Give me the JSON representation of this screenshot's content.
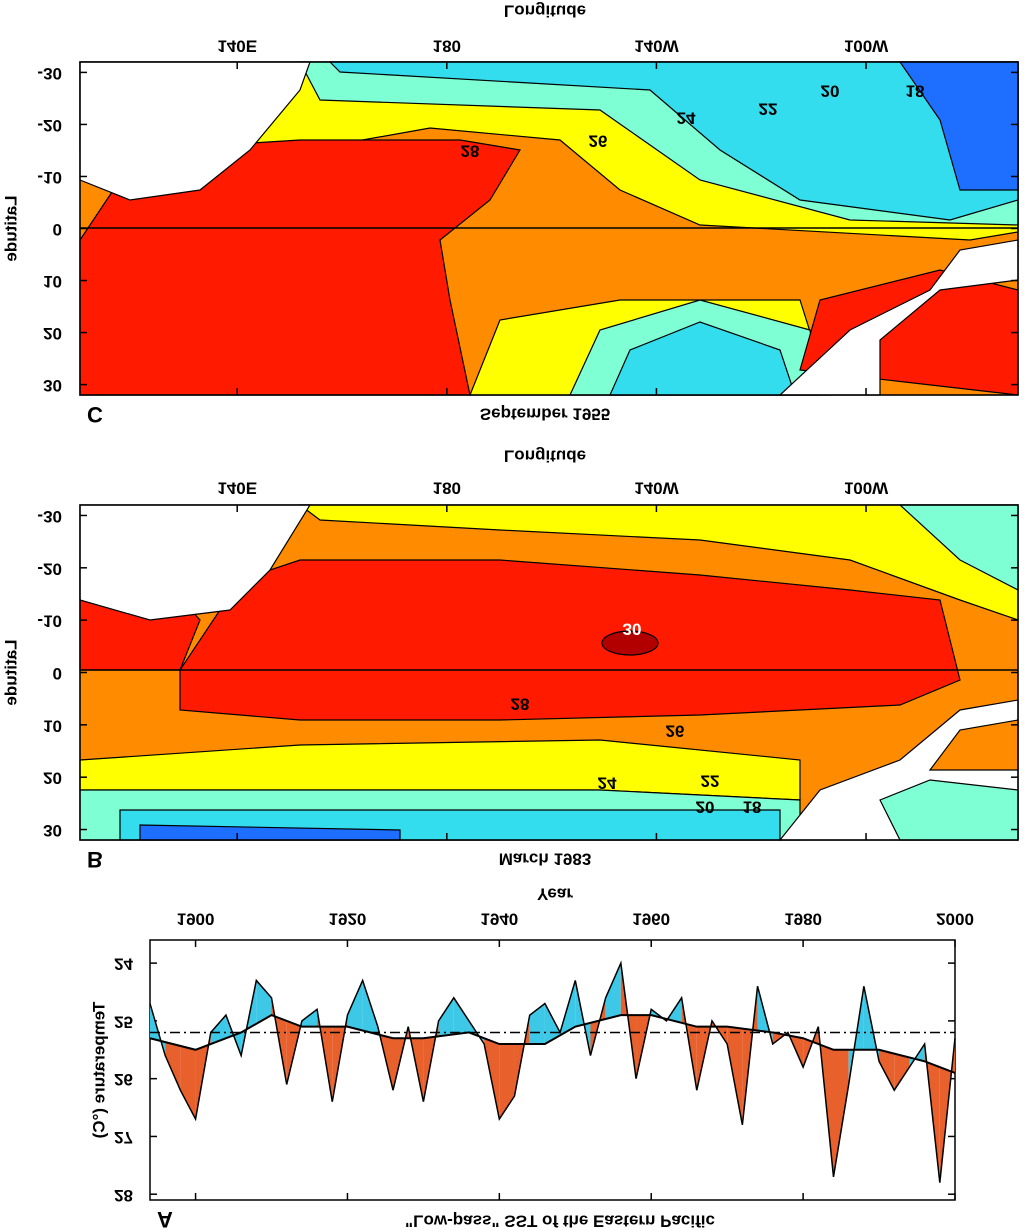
{
  "chart_data": [
    {
      "type": "line",
      "panel_label": "A",
      "title": "\"Low-pass\" SST of the Eastern Pacific",
      "x_label": "Year",
      "y_label": "Temperature (°C)",
      "xlim": [
        1894,
        2000
      ],
      "xticks": [
        1900,
        1920,
        1940,
        1960,
        1980,
        2000
      ],
      "ylim": [
        23.6,
        28.1
      ],
      "yticks": [
        24,
        25,
        26,
        27,
        28
      ],
      "reference_line": 25.2,
      "warm_color": "#e8602c",
      "cool_color": "#3cc8e6",
      "series": [
        {
          "x": [
            1894,
            1896,
            1898,
            1900,
            1902,
            1904,
            1906,
            1908,
            1910,
            1912,
            1914,
            1916,
            1918,
            1920,
            1922,
            1924,
            1926,
            1928,
            1930,
            1932,
            1934,
            1936,
            1938,
            1940,
            1942,
            1944,
            1946,
            1948,
            1950,
            1952,
            1954,
            1956,
            1958,
            1960,
            1962,
            1964,
            1966,
            1968,
            1970,
            1972,
            1974,
            1976,
            1978,
            1980,
            1982,
            1984,
            1986,
            1988,
            1990,
            1992,
            1994,
            1996,
            1998,
            2000
          ],
          "values": [
            24.7,
            25.6,
            26.2,
            26.7,
            25.2,
            24.9,
            25.6,
            24.3,
            24.6,
            26.1,
            25.0,
            24.8,
            26.4,
            24.9,
            24.3,
            25.1,
            26.2,
            25.1,
            26.4,
            25.0,
            24.6,
            25.0,
            25.4,
            26.7,
            26.3,
            24.9,
            24.7,
            25.2,
            24.3,
            25.6,
            24.6,
            24.0,
            26.0,
            24.8,
            25.0,
            24.6,
            26.2,
            25.0,
            25.4,
            26.8,
            24.4,
            25.4,
            25.2,
            25.8,
            25.1,
            27.7,
            26.1,
            24.4,
            25.7,
            26.2,
            25.8,
            25.4,
            27.8,
            25.3
          ]
        },
        {
          "x": [
            1894,
            1900,
            1906,
            1910,
            1914,
            1920,
            1926,
            1930,
            1936,
            1940,
            1946,
            1950,
            1956,
            1960,
            1966,
            1970,
            1976,
            1980,
            1984,
            1990,
            1996,
            2000
          ],
          "values": [
            25.3,
            25.5,
            25.2,
            24.9,
            25.1,
            25.1,
            25.3,
            25.3,
            25.2,
            25.4,
            25.4,
            25.1,
            24.9,
            24.9,
            25.1,
            25.1,
            25.2,
            25.3,
            25.5,
            25.5,
            25.7,
            25.9
          ]
        }
      ]
    },
    {
      "type": "contour",
      "panel_label": "B",
      "title": "March 1983",
      "x_label": "Longitude",
      "y_label": "Latitude",
      "xlim": [
        110,
        289
      ],
      "xticks": [
        {
          "value": 140,
          "label": "140E"
        },
        180,
        {
          "value": 220,
          "label": "140W"
        },
        {
          "value": 260,
          "label": "100W"
        }
      ],
      "ylim": [
        -32,
        32
      ],
      "yticks": [
        -30,
        -20,
        -10,
        0,
        10,
        20,
        30
      ],
      "contour_labels": [
        30,
        28,
        26,
        24,
        22,
        20,
        18
      ]
    },
    {
      "type": "contour",
      "panel_label": "C",
      "title": "September 1955",
      "x_label": "Longitude",
      "y_label": "Latitude",
      "xlim": [
        110,
        289
      ],
      "xticks": [
        {
          "value": 140,
          "label": "140E"
        },
        180,
        {
          "value": 220,
          "label": "140W"
        },
        {
          "value": 260,
          "label": "100W"
        }
      ],
      "ylim": [
        -32,
        32
      ],
      "yticks": [
        -30,
        -20,
        -10,
        0,
        10,
        20,
        30
      ],
      "contour_labels": [
        28,
        26,
        24,
        22,
        20,
        18
      ]
    }
  ]
}
